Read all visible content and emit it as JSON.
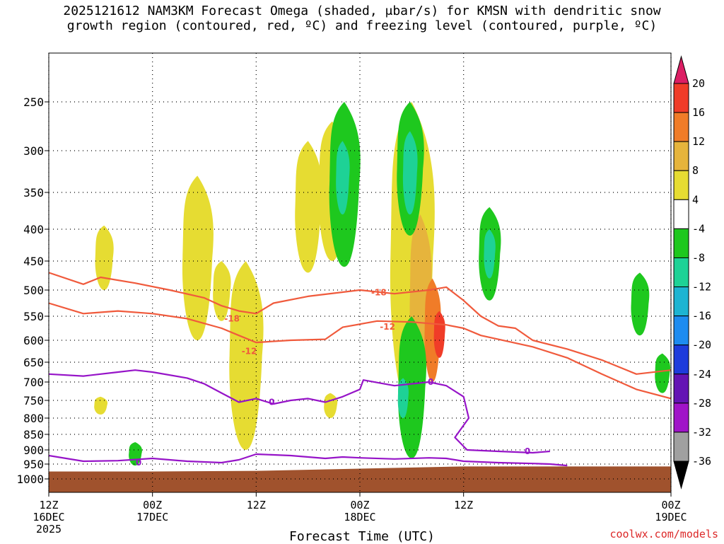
{
  "chart_data": {
    "type": "heatmap",
    "title_line1": "2025121612 NAM3KM Forecast Omega (shaded, μbar/s) for KMSN with dendritic snow",
    "title_line2": "growth region (contoured, red, ºC) and freezing level (contoured, purple, ºC)",
    "xlabel": "Forecast Time (UTC)",
    "ylabel": "",
    "credit": "coolwx.com/models",
    "y_ticks": [
      {
        "label": "250",
        "hpa": 250
      },
      {
        "label": "300",
        "hpa": 300
      },
      {
        "label": "350",
        "hpa": 350
      },
      {
        "label": "400",
        "hpa": 400
      },
      {
        "label": "450",
        "hpa": 450
      },
      {
        "label": "500",
        "hpa": 500
      },
      {
        "label": "550",
        "hpa": 550
      },
      {
        "label": "600",
        "hpa": 600
      },
      {
        "label": "650",
        "hpa": 650
      },
      {
        "label": "700",
        "hpa": 700
      },
      {
        "label": "750",
        "hpa": 750
      },
      {
        "label": "800",
        "hpa": 800
      },
      {
        "label": "850",
        "hpa": 850
      },
      {
        "label": "900",
        "hpa": 900
      },
      {
        "label": "950",
        "hpa": 950
      },
      {
        "label": "1000",
        "hpa": 1000
      }
    ],
    "ylim": [
      200,
      1020
    ],
    "xlim": [
      0,
      36
    ],
    "x_ticks": [
      {
        "lines": [
          "12Z",
          "16DEC",
          "2025"
        ],
        "hour": 0
      },
      {
        "lines": [
          "00Z",
          "17DEC"
        ],
        "hour": 6
      },
      {
        "lines": [
          "12Z"
        ],
        "hour": 12
      },
      {
        "lines": [
          "00Z",
          "18DEC"
        ],
        "hour": 18
      },
      {
        "lines": [
          "12Z"
        ],
        "hour": 24
      },
      {
        "lines": [
          "00Z",
          "19DEC"
        ],
        "hour": 36
      }
    ],
    "colorbar": {
      "labels": [
        "20",
        "16",
        "12",
        "8",
        "4",
        "-4",
        "-8",
        "-12",
        "-16",
        "-20",
        "-24",
        "-28",
        "-32",
        "-36"
      ],
      "colors": [
        "#dc1e64",
        "#f03c28",
        "#f07c28",
        "#e6b43c",
        "#e6dc32",
        "#ffffff",
        "#1ec81e",
        "#1ed296",
        "#1eb4d2",
        "#1e8cf0",
        "#1e3cdc",
        "#6414b4",
        "#a014c8",
        "#a0a0a0",
        "#000000"
      ]
    },
    "contours": [
      {
        "name": "-18C isotherm upper",
        "color": "#f05a3c",
        "label": "-18",
        "label_hour": 19.1,
        "points": [
          [
            0,
            470
          ],
          [
            2,
            490
          ],
          [
            3,
            478
          ],
          [
            5,
            488
          ],
          [
            7,
            500
          ],
          [
            9,
            515
          ],
          [
            10,
            530
          ],
          [
            11,
            540
          ],
          [
            12,
            545
          ],
          [
            13,
            525
          ],
          [
            15,
            512
          ],
          [
            17,
            504
          ],
          [
            18,
            500
          ],
          [
            20,
            507
          ],
          [
            22,
            500
          ],
          [
            23,
            495
          ],
          [
            24,
            520
          ],
          [
            25,
            550
          ],
          [
            26,
            570
          ],
          [
            27,
            575
          ],
          [
            28,
            600
          ],
          [
            30,
            620
          ],
          [
            32,
            645
          ],
          [
            34,
            680
          ],
          [
            36,
            670
          ]
        ]
      },
      {
        "name": "-12C isotherm",
        "color": "#f05a3c",
        "label": "-12",
        "label_hour": 11.6,
        "points": [
          [
            0,
            525
          ],
          [
            2,
            545
          ],
          [
            4,
            540
          ],
          [
            6,
            545
          ],
          [
            8,
            555
          ],
          [
            10,
            575
          ],
          [
            11,
            590
          ],
          [
            12,
            605
          ],
          [
            14,
            600
          ],
          [
            16,
            598
          ],
          [
            17,
            573
          ],
          [
            19,
            560
          ],
          [
            21,
            562
          ],
          [
            23,
            568
          ],
          [
            24,
            575
          ],
          [
            25,
            590
          ],
          [
            26,
            598
          ],
          [
            28,
            615
          ],
          [
            30,
            640
          ],
          [
            32,
            680
          ],
          [
            34,
            720
          ],
          [
            36,
            745
          ]
        ]
      },
      {
        "name": "-18C label 2",
        "color": "#f05a3c",
        "label": "-18",
        "label_hour": 10.6,
        "points": []
      },
      {
        "name": "-12C label 2",
        "color": "#f05a3c",
        "label": "-12",
        "label_hour": 19.6,
        "points": []
      },
      {
        "name": "0C freezing level upper",
        "color": "#9614c8",
        "label": "0",
        "label_hour": 5.2,
        "points": [
          [
            0,
            680
          ],
          [
            2,
            685
          ],
          [
            4,
            675
          ],
          [
            5,
            670
          ],
          [
            6,
            675
          ],
          [
            8,
            690
          ],
          [
            9,
            705
          ],
          [
            10,
            730
          ],
          [
            11,
            755
          ],
          [
            12,
            745
          ],
          [
            13,
            760
          ],
          [
            14,
            750
          ],
          [
            15,
            745
          ],
          [
            16,
            755
          ],
          [
            17,
            740
          ],
          [
            18,
            720
          ],
          [
            18.2,
            695
          ],
          [
            20,
            710
          ],
          [
            22,
            700
          ],
          [
            23,
            710
          ],
          [
            24,
            740
          ],
          [
            24.3,
            800
          ],
          [
            23.5,
            860
          ],
          [
            24.2,
            900
          ],
          [
            26,
            905
          ],
          [
            28,
            910
          ],
          [
            29,
            905
          ]
        ]
      },
      {
        "name": "0C freezing level lower",
        "color": "#9614c8",
        "label": "0",
        "label_hour": 13.6,
        "points": [
          [
            0,
            920
          ],
          [
            2,
            940
          ],
          [
            4,
            938
          ],
          [
            6,
            930
          ],
          [
            8,
            940
          ],
          [
            10,
            945
          ],
          [
            11,
            935
          ],
          [
            12,
            915
          ],
          [
            14,
            920
          ],
          [
            16,
            930
          ],
          [
            17,
            925
          ],
          [
            18,
            928
          ],
          [
            20,
            932
          ],
          [
            22,
            928
          ],
          [
            23,
            930
          ],
          [
            24,
            940
          ],
          [
            26,
            945
          ],
          [
            28,
            948
          ],
          [
            29,
            950
          ],
          [
            30,
            955
          ]
        ]
      }
    ],
    "contour_labels_extra": [
      {
        "label": "0",
        "hour": 5.2,
        "hpa": 945,
        "color": "#9614c8"
      },
      {
        "label": "0",
        "hour": 12.9,
        "hpa": 755,
        "color": "#9614c8"
      },
      {
        "label": "0",
        "hour": 22.1,
        "hpa": 700,
        "color": "#9614c8"
      },
      {
        "label": "0",
        "hour": 27.7,
        "hpa": 905,
        "color": "#9614c8"
      },
      {
        "label": "-18",
        "hour": 10.6,
        "hpa": 555,
        "color": "#f05a3c"
      },
      {
        "label": "-12",
        "hour": 11.6,
        "hpa": 625,
        "color": "#f05a3c"
      },
      {
        "label": "-18",
        "hour": 19.1,
        "hpa": 505,
        "color": "#f05a3c"
      },
      {
        "label": "-12",
        "hour": 19.6,
        "hpa": 572,
        "color": "#f05a3c"
      }
    ],
    "omega_regions": [
      {
        "sign": "rising",
        "level": 4,
        "center_hour": 3.2,
        "hpa_top": 395,
        "hpa_bottom": 500
      },
      {
        "sign": "rising",
        "level": 4,
        "center_hour": 3.0,
        "hpa_top": 740,
        "hpa_bottom": 790
      },
      {
        "sign": "rising",
        "level": 4,
        "center_hour": 8.6,
        "hpa_top": 330,
        "hpa_bottom": 600
      },
      {
        "sign": "rising",
        "level": 4,
        "center_hour": 10.0,
        "hpa_top": 450,
        "hpa_bottom": 560
      },
      {
        "sign": "rising",
        "level": 4,
        "center_hour": 11.4,
        "hpa_top": 450,
        "hpa_bottom": 900
      },
      {
        "sign": "rising",
        "level": 4,
        "center_hour": 16.3,
        "hpa_top": 730,
        "hpa_bottom": 800
      },
      {
        "sign": "rising",
        "level": 4,
        "center_hour": 15.0,
        "hpa_top": 290,
        "hpa_bottom": 470
      },
      {
        "sign": "rising",
        "level": 4,
        "center_hour": 16.4,
        "hpa_top": 270,
        "hpa_bottom": 450
      },
      {
        "sign": "rising",
        "level": 4,
        "center_hour": 21.0,
        "hpa_top": 250,
        "hpa_bottom": 780
      },
      {
        "sign": "rising",
        "level": 8,
        "center_hour": 21.5,
        "hpa_top": 380,
        "hpa_bottom": 700
      },
      {
        "sign": "rising",
        "level": 12,
        "center_hour": 22.2,
        "hpa_top": 480,
        "hpa_bottom": 700
      },
      {
        "sign": "rising",
        "level": 16,
        "center_hour": 22.6,
        "hpa_top": 540,
        "hpa_bottom": 640
      },
      {
        "sign": "sinking",
        "level": -4,
        "center_hour": 17.1,
        "hpa_top": 250,
        "hpa_bottom": 460
      },
      {
        "sign": "sinking",
        "level": -8,
        "center_hour": 17.0,
        "hpa_top": 290,
        "hpa_bottom": 380
      },
      {
        "sign": "sinking",
        "level": -4,
        "center_hour": 20.9,
        "hpa_top": 250,
        "hpa_bottom": 410
      },
      {
        "sign": "sinking",
        "level": -8,
        "center_hour": 20.9,
        "hpa_top": 280,
        "hpa_bottom": 380
      },
      {
        "sign": "sinking",
        "level": -4,
        "center_hour": 21.0,
        "hpa_top": 550,
        "hpa_bottom": 930
      },
      {
        "sign": "sinking",
        "level": -8,
        "center_hour": 20.5,
        "hpa_top": 690,
        "hpa_bottom": 800
      },
      {
        "sign": "sinking",
        "level": -4,
        "center_hour": 25.5,
        "hpa_top": 370,
        "hpa_bottom": 520
      },
      {
        "sign": "sinking",
        "level": -8,
        "center_hour": 25.5,
        "hpa_top": 400,
        "hpa_bottom": 480
      },
      {
        "sign": "sinking",
        "level": -4,
        "center_hour": 34.2,
        "hpa_top": 470,
        "hpa_bottom": 590
      },
      {
        "sign": "sinking",
        "level": -4,
        "center_hour": 35.5,
        "hpa_top": 630,
        "hpa_bottom": 730
      },
      {
        "sign": "sinking",
        "level": -4,
        "center_hour": 5.0,
        "hpa_top": 875,
        "hpa_bottom": 955
      }
    ],
    "surface_fill": {
      "color": "#a0522d",
      "hpa_top_min": 958,
      "hpa_top_max": 975
    }
  }
}
